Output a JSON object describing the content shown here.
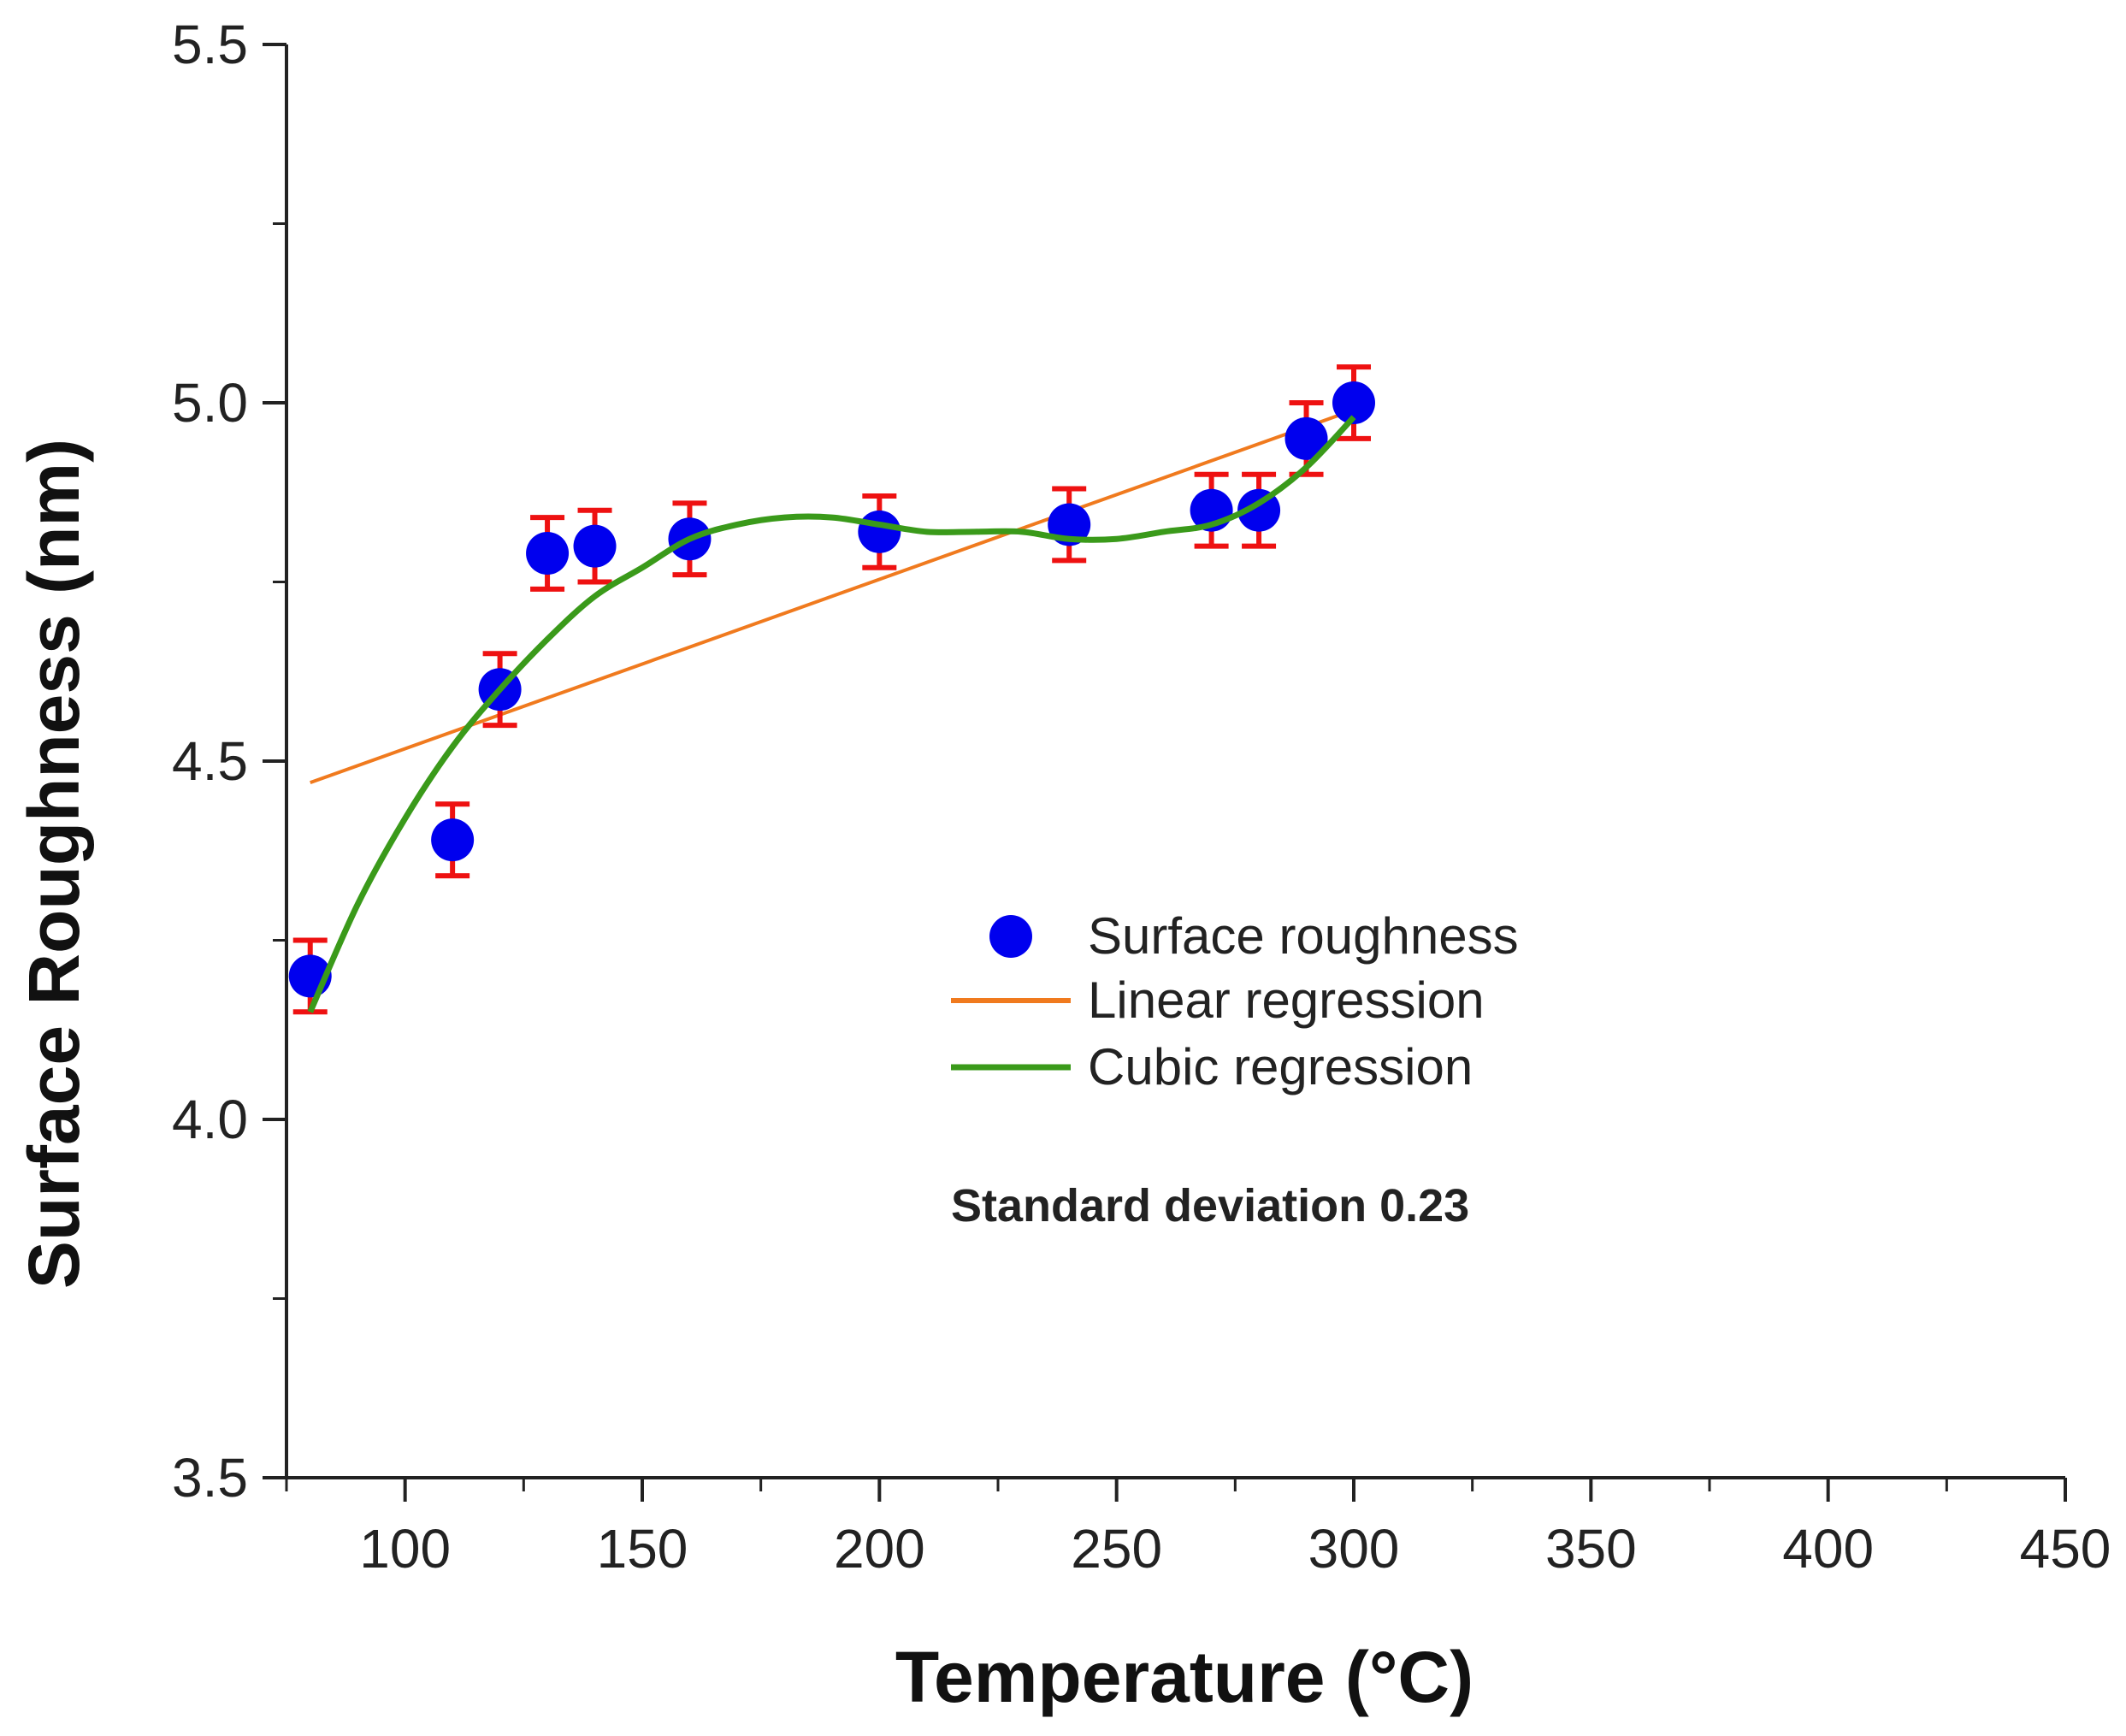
{
  "chart_data": {
    "type": "scatter",
    "xlabel": "Temperature (°C)",
    "ylabel": "Surface Roughness (nm)",
    "xlim": [
      75,
      450
    ],
    "ylim": [
      3.5,
      5.5
    ],
    "x_ticks": [
      100,
      150,
      200,
      250,
      300,
      350,
      400,
      450
    ],
    "x_tick_labels": [
      "100",
      "150",
      "200",
      "250",
      "300",
      "350",
      "400",
      "450"
    ],
    "y_ticks": [
      3.5,
      4.0,
      4.5,
      5.0,
      5.5
    ],
    "y_tick_labels": [
      "3.5",
      "4.0",
      "4.5",
      "5.0",
      "5.5"
    ],
    "grid": false,
    "legend_position": "center-right",
    "series": [
      {
        "name": "Surface roughness",
        "kind": "scatter",
        "color": "#0000ee",
        "error_color": "#ee1111",
        "x": [
          80,
          110,
          120,
          130,
          140,
          160,
          200,
          240,
          270,
          280,
          290,
          300
        ],
        "y": [
          4.2,
          4.39,
          4.6,
          4.79,
          4.8,
          4.81,
          4.82,
          4.83,
          4.85,
          4.85,
          4.95,
          5.0
        ],
        "error": [
          0.05,
          0.05,
          0.05,
          0.05,
          0.05,
          0.05,
          0.05,
          0.05,
          0.05,
          0.05,
          0.05,
          0.05
        ]
      },
      {
        "name": "Linear regression",
        "kind": "line",
        "color": "#f07a1e",
        "x": [
          80,
          300
        ],
        "y": [
          4.47,
          4.99
        ]
      },
      {
        "name": "Cubic regression",
        "kind": "line",
        "color": "#3a9a1a",
        "x": [
          80,
          90,
          100,
          110,
          120,
          130,
          140,
          150,
          160,
          170,
          180,
          190,
          200,
          210,
          220,
          230,
          240,
          250,
          260,
          270,
          280,
          290,
          300
        ],
        "y": [
          4.15,
          4.3,
          4.42,
          4.52,
          4.6,
          4.67,
          4.73,
          4.77,
          4.81,
          4.83,
          4.84,
          4.84,
          4.83,
          4.82,
          4.82,
          4.82,
          4.81,
          4.81,
          4.82,
          4.83,
          4.86,
          4.91,
          4.98
        ]
      }
    ],
    "annotation": "Standard deviation 0.23"
  }
}
